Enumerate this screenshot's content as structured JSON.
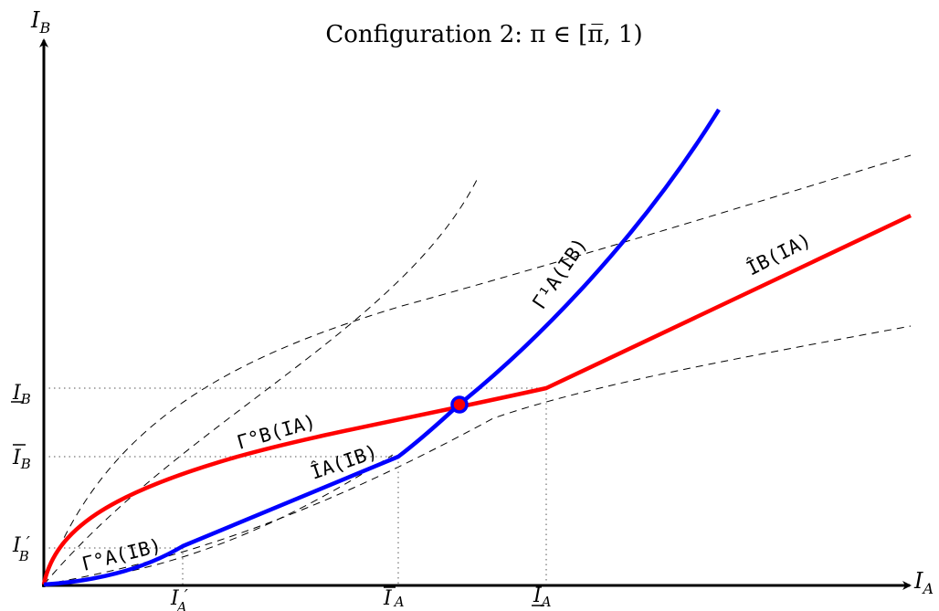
{
  "title": "Configuration 2:  π ∈ [π̅, 1)",
  "axes": {
    "x_label": "I",
    "x_sub": "A",
    "y_label": "I",
    "y_sub": "B"
  },
  "x_ticks": [
    {
      "base": "I",
      "sub": "A",
      "mark": "′",
      "accent": "prime"
    },
    {
      "base": "I",
      "sub": "A",
      "mark": "",
      "accent": "overline"
    },
    {
      "base": "I",
      "sub": "A",
      "mark": "",
      "accent": "underline"
    }
  ],
  "y_ticks": [
    {
      "base": "I",
      "sub": "B",
      "mark": "",
      "accent": "underline"
    },
    {
      "base": "I",
      "sub": "B",
      "mark": "",
      "accent": "overline"
    },
    {
      "base": "I",
      "sub": "B",
      "mark": "′",
      "accent": "prime"
    }
  ],
  "curve_labels": {
    "gamma1_a": "Γ¹A(IB)",
    "gamma0_b": "Γ°B(IA)",
    "ihat_a": "ÎA(IB)",
    "ihat_b": "ÎB(IA)",
    "gamma0_a": "Γ°A(IB)"
  },
  "colors": {
    "red_curve": "#ff0000",
    "blue_curve": "#0000ff",
    "equilibrium_fill": "#ff0000",
    "equilibrium_stroke": "#0000ff",
    "dashed": "#000000"
  }
}
